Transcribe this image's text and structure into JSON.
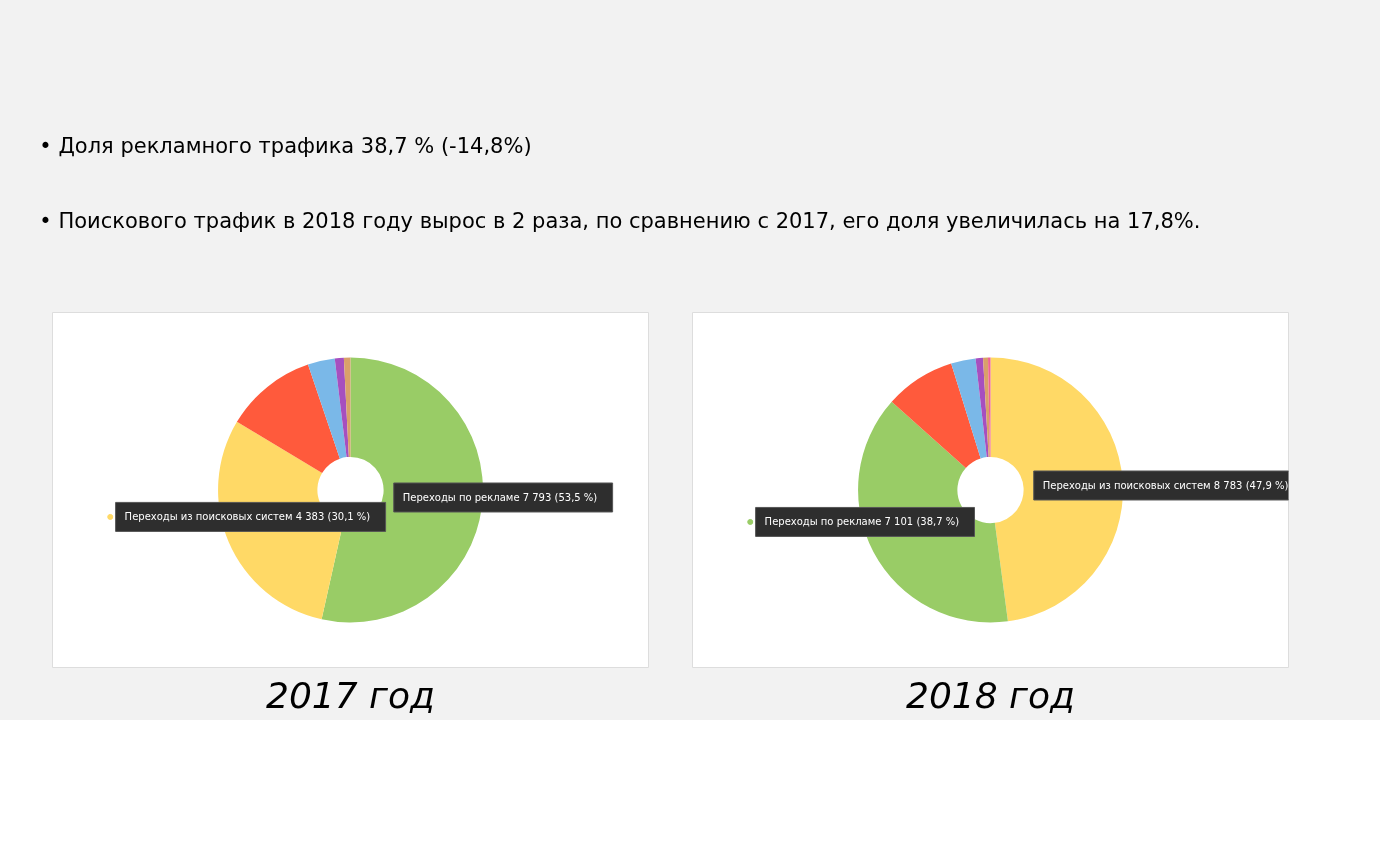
{
  "chart_data": [
    {
      "type": "donut",
      "title": "2017 год",
      "annotations": [
        "• Доля рекламного трафика 38,7 % (-14,8%)",
        "• Поискового трафик в 2018 году вырос в 2 раза, по сравнению с 2017, его доля увеличилась на 17,8%."
      ],
      "categories": [
        "Переходы по рекламе",
        "Переходы из поисковых систем",
        null,
        null,
        null,
        null
      ],
      "values": [
        53.5,
        30.1,
        11.2,
        3.3,
        1.1,
        0.8
      ],
      "value_labels": [
        "7 793 (53,5 %)",
        "4 383 (30,1 %)",
        null,
        null,
        null,
        null
      ],
      "colors": [
        "#99cc66",
        "#ffd966",
        "#ff5a3c",
        "#7ab8e8",
        "#a64fbf",
        "#d9a06a"
      ]
    },
    {
      "type": "donut",
      "title": "2018 год",
      "categories": [
        "Переходы из поисковых систем",
        "Переходы по рекламе",
        null,
        null,
        null,
        null,
        null
      ],
      "values": [
        47.9,
        38.7,
        8.6,
        3.0,
        0.9,
        0.6,
        0.3
      ],
      "value_labels": [
        "8 783 (47,9 %)",
        "7 101 (38,7 %)",
        null,
        null,
        null,
        null,
        null
      ],
      "colors": [
        "#ffd966",
        "#99cc66",
        "#ff5a3c",
        "#7ab8e8",
        "#a64fbf",
        "#d9a06a",
        "#f06292"
      ]
    }
  ]
}
